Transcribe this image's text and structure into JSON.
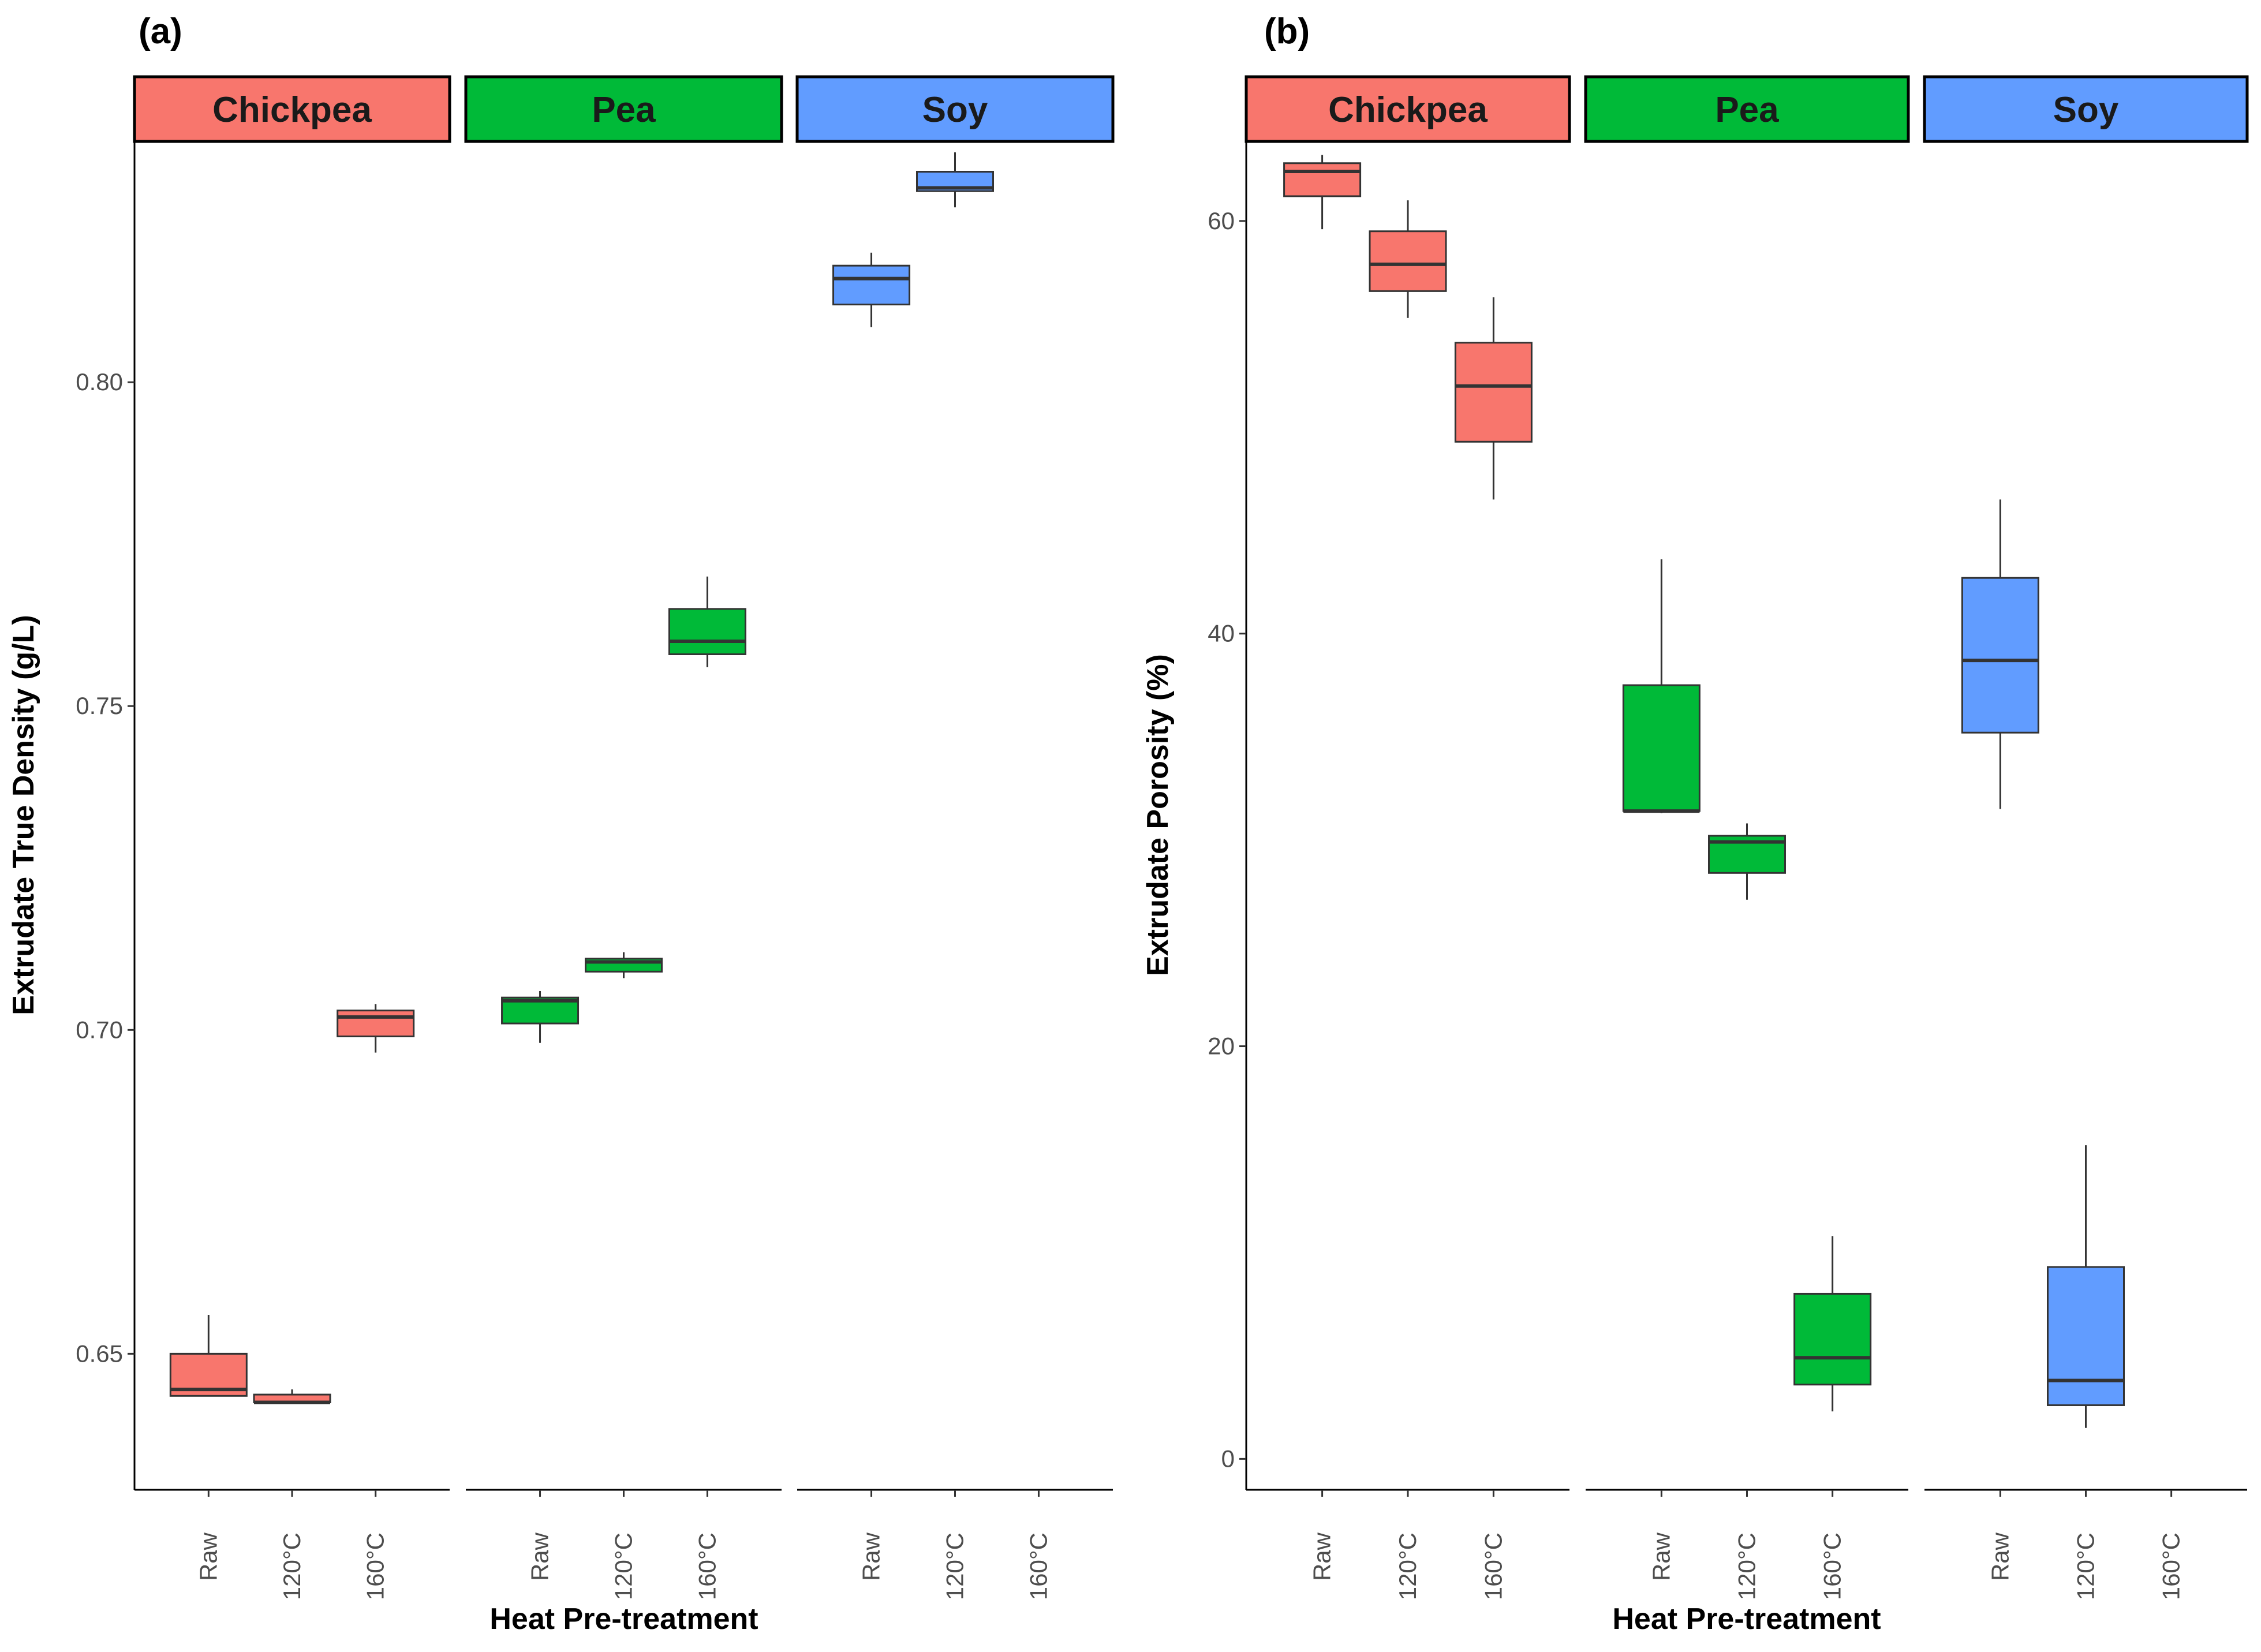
{
  "chart_data": [
    {
      "panel_label": "(a)",
      "type": "box",
      "xlabel": "Heat Pre-treatment",
      "ylabel": "Extrudate True Density (g/L)",
      "ylim": [
        0.629,
        0.837
      ],
      "yticks": [
        "0.65",
        "0.70",
        "0.75",
        "0.80"
      ],
      "categories": [
        "Raw",
        "120°C",
        "160°C"
      ],
      "facets": [
        {
          "name": "Chickpea",
          "color": "#F8766D",
          "boxes": [
            {
              "category": "Raw",
              "min": 0.6435,
              "q1": 0.6435,
              "median": 0.6445,
              "q3": 0.65,
              "max": 0.656
            },
            {
              "category": "120°C",
              "min": 0.6423,
              "q1": 0.6425,
              "median": 0.6425,
              "q3": 0.6437,
              "max": 0.6445
            },
            {
              "category": "160°C",
              "min": 0.6965,
              "q1": 0.699,
              "median": 0.702,
              "q3": 0.703,
              "max": 0.704
            }
          ]
        },
        {
          "name": "Pea",
          "color": "#00BA38",
          "boxes": [
            {
              "category": "Raw",
              "min": 0.698,
              "q1": 0.701,
              "median": 0.7045,
              "q3": 0.705,
              "max": 0.706
            },
            {
              "category": "120°C",
              "min": 0.708,
              "q1": 0.709,
              "median": 0.7105,
              "q3": 0.711,
              "max": 0.712
            },
            {
              "category": "160°C",
              "min": 0.756,
              "q1": 0.758,
              "median": 0.76,
              "q3": 0.765,
              "max": 0.77
            }
          ]
        },
        {
          "name": "Soy",
          "color": "#619CFF",
          "boxes": [
            {
              "category": "Raw",
              "min": 0.8085,
              "q1": 0.812,
              "median": 0.816,
              "q3": 0.818,
              "max": 0.82
            },
            {
              "category": "120°C",
              "min": 0.827,
              "q1": 0.8295,
              "median": 0.83,
              "q3": 0.8325,
              "max": 0.8355
            }
          ]
        }
      ]
    },
    {
      "panel_label": "(b)",
      "type": "box",
      "xlabel": "Heat Pre-treatment",
      "ylabel": "Extrudate Porosity (%)",
      "ylim": [
        -1.5,
        63.8
      ],
      "yticks": [
        "0",
        "20",
        "40",
        "60"
      ],
      "categories": [
        "Raw",
        "120°C",
        "160°C"
      ],
      "facets": [
        {
          "name": "Chickpea",
          "color": "#F8766D",
          "boxes": [
            {
              "category": "Raw",
              "min": 59.6,
              "q1": 61.2,
              "median": 62.4,
              "q3": 62.8,
              "max": 63.2
            },
            {
              "category": "120°C",
              "min": 55.3,
              "q1": 56.6,
              "median": 57.9,
              "q3": 59.5,
              "max": 61.0
            },
            {
              "category": "160°C",
              "min": 46.5,
              "q1": 49.3,
              "median": 52.0,
              "q3": 54.1,
              "max": 56.3
            }
          ]
        },
        {
          "name": "Pea",
          "color": "#00BA38",
          "boxes": [
            {
              "category": "Raw",
              "min": 31.3,
              "q1": 31.4,
              "median": 31.4,
              "q3": 37.5,
              "max": 43.6
            },
            {
              "category": "120°C",
              "min": 27.1,
              "q1": 28.4,
              "median": 29.9,
              "q3": 30.2,
              "max": 30.8
            },
            {
              "category": "160°C",
              "min": 2.3,
              "q1": 3.6,
              "median": 4.9,
              "q3": 8.0,
              "max": 10.8
            }
          ]
        },
        {
          "name": "Soy",
          "color": "#619CFF",
          "boxes": [
            {
              "category": "Raw",
              "min": 31.5,
              "q1": 35.2,
              "median": 38.7,
              "q3": 42.7,
              "max": 46.5
            },
            {
              "category": "120°C",
              "min": 1.5,
              "q1": 2.6,
              "median": 3.8,
              "q3": 9.3,
              "max": 15.2
            }
          ]
        }
      ]
    }
  ]
}
